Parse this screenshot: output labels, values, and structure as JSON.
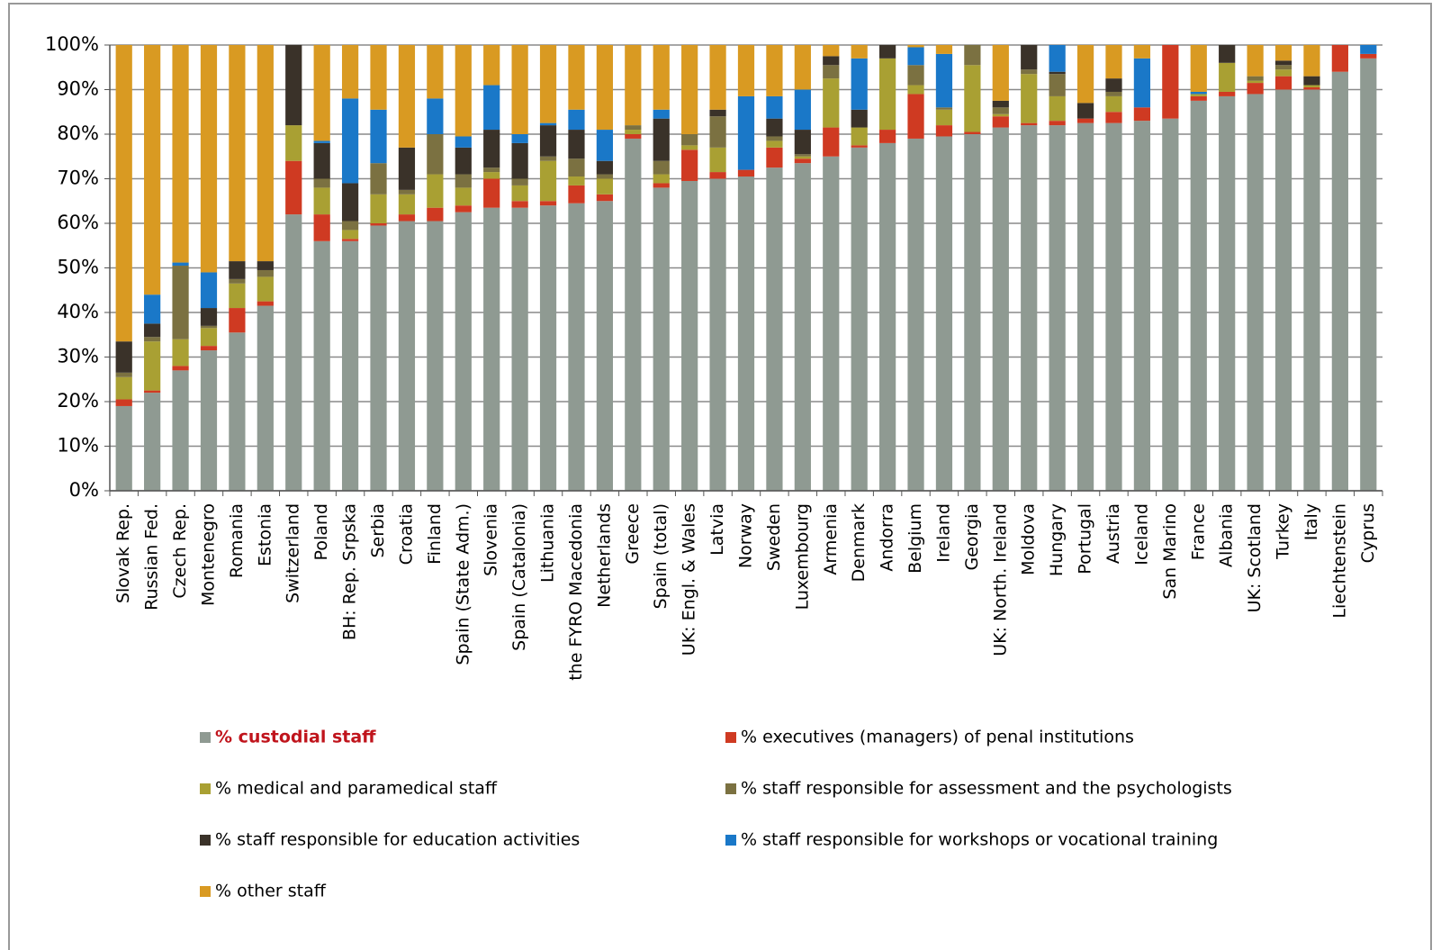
{
  "chart_data": {
    "type": "stacked_bar",
    "categories": [
      "Slovak Rep.",
      "Russian Fed.",
      "Czech Rep.",
      "Montenegro",
      "Romania",
      "Estonia",
      "Switzerland",
      "Poland",
      "BH: Rep. Srpska",
      "Serbia",
      "Croatia",
      "Finland",
      "Spain (State Adm.)",
      "Slovenia",
      "Spain (Catalonia)",
      "Lithuania",
      "the FYRO Macedonia",
      "Netherlands",
      "Greece",
      "Spain (total)",
      "UK: Engl. & Wales",
      "Latvia",
      "Norway",
      "Sweden",
      "Luxembourg",
      "Armenia",
      "Denmark",
      "Andorra",
      "Belgium",
      "Ireland",
      "Georgia",
      "UK: North. Ireland",
      "Moldova",
      "Hungary",
      "Portugal",
      "Austria",
      "Iceland",
      "San Marino",
      "France",
      "Albania",
      "UK: Scotland",
      "Turkey",
      "Italy",
      "Liechtenstein",
      "Cyprus"
    ],
    "series": [
      {
        "name": "% custodial staff",
        "color": "#8f9a92",
        "values": [
          19,
          22,
          27,
          31.5,
          35.5,
          41.5,
          62,
          56,
          56,
          59.5,
          60.5,
          60.5,
          62.5,
          63.5,
          63.5,
          64,
          64.5,
          65,
          79,
          68,
          69.5,
          70,
          70.5,
          72.5,
          73.5,
          75,
          77,
          78,
          79,
          79.5,
          80,
          81.5,
          82,
          82,
          82.5,
          82.5,
          83,
          83.5,
          87.5,
          88.5,
          89,
          90,
          90,
          94,
          97
        ]
      },
      {
        "name": "% executives (managers) of penal institutions",
        "color": "#cf3a22",
        "values": [
          1.5,
          0.5,
          1,
          1,
          5.5,
          1,
          12,
          6,
          0.5,
          0.5,
          1.5,
          3,
          1.5,
          6.5,
          1.5,
          1,
          4,
          1.5,
          1,
          1,
          7,
          1.5,
          1.5,
          4.5,
          1,
          6.5,
          0.5,
          3,
          10,
          2.5,
          0.5,
          2.5,
          0.5,
          1,
          1,
          2.5,
          3,
          16.5,
          1,
          1,
          2.5,
          3,
          0.5,
          6,
          1
        ]
      },
      {
        "name": "% medical and paramedical staff",
        "color": "#a9a033",
        "values": [
          5,
          11,
          6,
          4,
          5.5,
          5.5,
          8,
          6,
          2,
          6.5,
          4.5,
          7.5,
          4,
          1.5,
          3.5,
          9,
          2,
          3.5,
          1,
          2,
          1,
          5.5,
          0,
          1.5,
          0.5,
          11,
          4,
          16,
          2,
          3.5,
          15,
          0.5,
          11,
          5.5,
          0,
          3.5,
          0,
          0,
          0.5,
          6.5,
          0.5,
          1.5,
          0.5,
          0,
          0
        ]
      },
      {
        "name": "% staff responsible for assessment and the psychologists",
        "color": "#7b7141",
        "values": [
          1,
          1,
          16.5,
          0.5,
          1,
          1.5,
          0,
          2,
          2,
          7,
          1,
          9,
          3,
          1,
          1.5,
          1,
          4,
          1,
          1,
          3,
          2.5,
          7,
          0,
          1,
          0.5,
          3,
          0,
          0,
          4.5,
          0.5,
          4.5,
          1.5,
          1,
          5,
          0,
          1,
          0,
          0,
          0,
          0,
          1,
          1,
          0,
          0,
          0
        ]
      },
      {
        "name": "% staff responsible for education activities",
        "color": "#3a3229",
        "values": [
          7,
          3,
          0,
          4,
          4,
          2,
          18,
          8,
          8.5,
          0,
          9.5,
          0,
          6,
          8.5,
          8,
          7,
          6.5,
          3,
          0,
          9.5,
          0,
          1.5,
          0,
          4,
          5.5,
          2,
          4,
          3,
          0,
          0,
          0,
          1.5,
          5.5,
          0.5,
          3.5,
          3,
          0,
          0,
          0,
          4,
          0,
          1,
          2,
          0,
          0
        ]
      },
      {
        "name": "% staff responsible for workshops or vocational training",
        "color": "#1a78c8",
        "values": [
          0,
          6.5,
          0.7,
          8,
          0,
          0,
          0,
          0.5,
          19,
          12,
          0,
          8,
          2.5,
          10,
          2,
          0.5,
          4.5,
          7,
          0,
          2,
          0,
          0,
          16.5,
          5,
          9,
          0,
          11.5,
          0,
          4,
          12,
          0,
          0,
          0,
          6,
          0,
          0,
          11,
          0,
          0.5,
          0,
          0,
          0,
          0,
          0,
          2
        ]
      },
      {
        "name": "% other staff",
        "color": "#d99a22",
        "values": [
          66.5,
          56,
          48.8,
          51,
          48.5,
          48.5,
          0,
          21.5,
          12,
          14.5,
          23,
          12,
          20.5,
          9,
          20,
          17.5,
          14.5,
          19,
          18,
          14.5,
          20,
          14.5,
          11.5,
          11.5,
          10,
          2.5,
          3,
          0,
          0.5,
          2,
          0,
          12.5,
          0,
          0,
          13,
          7.5,
          3,
          0,
          10.5,
          0,
          7,
          3.5,
          7,
          0,
          0
        ]
      }
    ],
    "ylim": [
      0,
      100
    ],
    "yticks": [
      {
        "value": 0,
        "label": "0%"
      },
      {
        "value": 10,
        "label": "10%"
      },
      {
        "value": 20,
        "label": "20%"
      },
      {
        "value": 30,
        "label": "30%"
      },
      {
        "value": 40,
        "label": "40%"
      },
      {
        "value": 50,
        "label": "50%"
      },
      {
        "value": 60,
        "label": "60%"
      },
      {
        "value": 70,
        "label": "70%"
      },
      {
        "value": 80,
        "label": "80%"
      },
      {
        "value": 90,
        "label": "90%"
      },
      {
        "value": 100,
        "label": "100%"
      }
    ],
    "grid": true
  }
}
